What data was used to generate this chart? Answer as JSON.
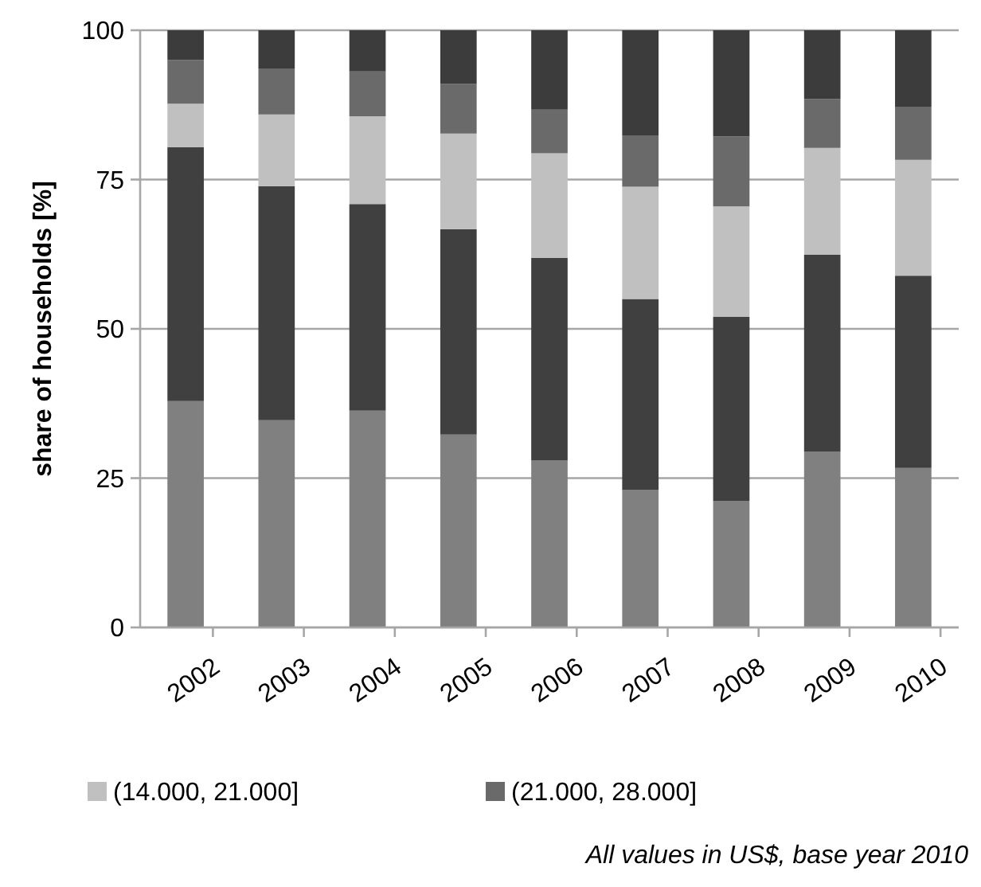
{
  "chart_data": {
    "type": "bar",
    "stacked": true,
    "ylabel": "share of households [%]",
    "categories": [
      "2002",
      "2003",
      "2004",
      "2005",
      "2006",
      "2007",
      "2008",
      "2009",
      "2010"
    ],
    "series": [
      {
        "color": "#808080",
        "values": [
          37.9,
          34.7,
          36.3,
          32.3,
          28.0,
          23.0,
          21.2,
          29.4,
          26.7
        ]
      },
      {
        "color": "#404040",
        "values": [
          42.5,
          39.2,
          34.6,
          34.4,
          33.9,
          32.0,
          30.8,
          33.0,
          32.2
        ]
      },
      {
        "name": "(14.000, 21.000]",
        "color": "#c0c0c0",
        "values": [
          7.3,
          12.0,
          14.7,
          16.0,
          17.5,
          18.8,
          18.5,
          17.9,
          19.4
        ]
      },
      {
        "name": "(21.000, 28.000]",
        "color": "#6a6a6a",
        "values": [
          7.3,
          7.7,
          7.5,
          8.3,
          7.3,
          8.6,
          11.7,
          8.2,
          8.9
        ]
      },
      {
        "color": "#3c3c3c",
        "values": [
          5.0,
          6.4,
          6.9,
          9.0,
          13.3,
          17.6,
          17.8,
          11.5,
          12.8
        ]
      }
    ],
    "ylim": [
      0,
      100
    ],
    "yticks": [
      0,
      25,
      50,
      75,
      100
    ],
    "grid": "y",
    "legend": "bottom",
    "annotations": [
      "All values in US$, base year 2010"
    ]
  }
}
